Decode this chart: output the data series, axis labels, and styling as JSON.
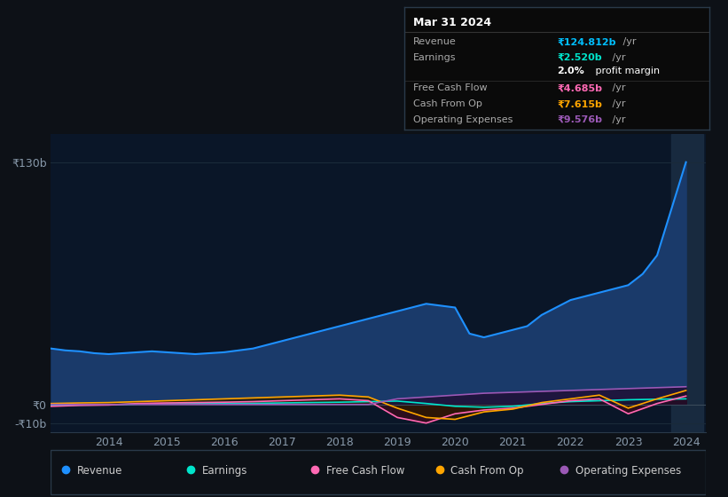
{
  "background_color": "#0d1117",
  "plot_bg_color": "#0a1628",
  "grid_color": "#1a2a3a",
  "ylim": [
    -15,
    145
  ],
  "yticks": [
    -10,
    0,
    130
  ],
  "ytick_labels": [
    "-₹10b",
    "₹0",
    "₹130b"
  ],
  "xtick_years": [
    2014,
    2015,
    2016,
    2017,
    2018,
    2019,
    2020,
    2021,
    2022,
    2023,
    2024
  ],
  "series": {
    "Revenue": {
      "color": "#1e90ff",
      "fill_color": "#1a3a6a",
      "x": [
        2013.0,
        2013.25,
        2013.5,
        2013.75,
        2014.0,
        2014.25,
        2014.5,
        2014.75,
        2015.0,
        2015.25,
        2015.5,
        2015.75,
        2016.0,
        2016.25,
        2016.5,
        2016.75,
        2017.0,
        2017.25,
        2017.5,
        2017.75,
        2018.0,
        2018.25,
        2018.5,
        2018.75,
        2019.0,
        2019.25,
        2019.5,
        2019.75,
        2020.0,
        2020.25,
        2020.5,
        2020.75,
        2021.0,
        2021.25,
        2021.5,
        2021.75,
        2022.0,
        2022.25,
        2022.5,
        2022.75,
        2023.0,
        2023.25,
        2023.5,
        2023.75,
        2024.0
      ],
      "y": [
        30,
        29,
        28.5,
        27.5,
        27,
        27.5,
        28,
        28.5,
        28,
        27.5,
        27,
        27.5,
        28,
        29,
        30,
        32,
        34,
        36,
        38,
        40,
        42,
        44,
        46,
        48,
        50,
        52,
        54,
        53,
        52,
        38,
        36,
        38,
        40,
        42,
        48,
        52,
        56,
        58,
        60,
        62,
        64,
        70,
        80,
        105,
        130
      ]
    },
    "Earnings": {
      "color": "#00e5cc",
      "fill_color": "#003d38",
      "x": [
        2013.0,
        2013.5,
        2014.0,
        2014.5,
        2015.0,
        2015.5,
        2016.0,
        2016.5,
        2017.0,
        2017.5,
        2018.0,
        2018.5,
        2019.0,
        2019.5,
        2020.0,
        2020.5,
        2021.0,
        2021.5,
        2022.0,
        2022.5,
        2023.0,
        2023.5,
        2024.0
      ],
      "y": [
        -0.5,
        -0.3,
        -0.2,
        0.2,
        0.3,
        0.4,
        0.5,
        0.6,
        0.8,
        1.0,
        1.2,
        1.5,
        1.8,
        0.5,
        -1.0,
        -1.5,
        -1.0,
        0.5,
        1.5,
        2.0,
        2.5,
        2.8,
        3.0
      ]
    },
    "Free Cash Flow": {
      "color": "#ff69b4",
      "fill_color": "#3a0a1a",
      "x": [
        2013.0,
        2013.5,
        2014.0,
        2014.5,
        2015.0,
        2015.5,
        2016.0,
        2016.5,
        2017.0,
        2017.5,
        2018.0,
        2018.5,
        2019.0,
        2019.5,
        2020.0,
        2020.5,
        2021.0,
        2021.5,
        2022.0,
        2022.5,
        2023.0,
        2023.5,
        2024.0
      ],
      "y": [
        -1.0,
        -0.5,
        -0.3,
        0.5,
        0.8,
        1.0,
        1.2,
        1.5,
        2.0,
        2.5,
        3.0,
        2.0,
        -7.0,
        -10.0,
        -5.0,
        -3.0,
        -2.0,
        0.0,
        2.0,
        3.0,
        -5.0,
        0.5,
        4.5
      ]
    },
    "Cash From Op": {
      "color": "#ffa500",
      "fill_color": "#2d1a00",
      "x": [
        2013.0,
        2013.5,
        2014.0,
        2014.5,
        2015.0,
        2015.5,
        2016.0,
        2016.5,
        2017.0,
        2017.5,
        2018.0,
        2018.5,
        2019.0,
        2019.5,
        2020.0,
        2020.5,
        2021.0,
        2021.5,
        2022.0,
        2022.5,
        2023.0,
        2023.5,
        2024.0
      ],
      "y": [
        0.5,
        0.8,
        1.0,
        1.5,
        2.0,
        2.5,
        3.0,
        3.5,
        4.0,
        4.5,
        5.0,
        4.0,
        -2.0,
        -7.0,
        -8.0,
        -4.0,
        -2.5,
        1.0,
        3.0,
        5.0,
        -2.0,
        3.0,
        7.5
      ]
    },
    "Operating Expenses": {
      "color": "#9b59b6",
      "fill_color": "#200a30",
      "x": [
        2013.0,
        2013.5,
        2014.0,
        2014.5,
        2015.0,
        2015.5,
        2016.0,
        2016.5,
        2017.0,
        2017.5,
        2018.0,
        2018.5,
        2019.0,
        2019.5,
        2020.0,
        2020.5,
        2021.0,
        2021.5,
        2022.0,
        2022.5,
        2023.0,
        2023.5,
        2024.0
      ],
      "y": [
        0.0,
        0.0,
        0.0,
        0.0,
        0.0,
        0.0,
        0.0,
        0.0,
        0.0,
        0.0,
        0.0,
        0.0,
        3.0,
        4.0,
        5.0,
        6.0,
        6.5,
        7.0,
        7.5,
        8.0,
        8.5,
        9.0,
        9.5
      ]
    }
  },
  "legend": [
    {
      "label": "Revenue",
      "color": "#1e90ff"
    },
    {
      "label": "Earnings",
      "color": "#00e5cc"
    },
    {
      "label": "Free Cash Flow",
      "color": "#ff69b4"
    },
    {
      "label": "Cash From Op",
      "color": "#ffa500"
    },
    {
      "label": "Operating Expenses",
      "color": "#9b59b6"
    }
  ],
  "infobox": {
    "title": "Mar 31 2024",
    "rows": [
      {
        "label": "Revenue",
        "value": "₹124.812b",
        "unit": " /yr",
        "color": "#00bfff",
        "divider_after": false
      },
      {
        "label": "Earnings",
        "value": "₹2.520b",
        "unit": " /yr",
        "color": "#00e5cc",
        "divider_after": false
      },
      {
        "label": "",
        "value": "2.0%",
        "unit": " profit margin",
        "color": "white",
        "divider_after": true
      },
      {
        "label": "Free Cash Flow",
        "value": "₹4.685b",
        "unit": " /yr",
        "color": "#ff69b4",
        "divider_after": false
      },
      {
        "label": "Cash From Op",
        "value": "₹7.615b",
        "unit": " /yr",
        "color": "#ffa500",
        "divider_after": false
      },
      {
        "label": "Operating Expenses",
        "value": "₹9.576b",
        "unit": " /yr",
        "color": "#9b59b6",
        "divider_after": false
      }
    ]
  }
}
